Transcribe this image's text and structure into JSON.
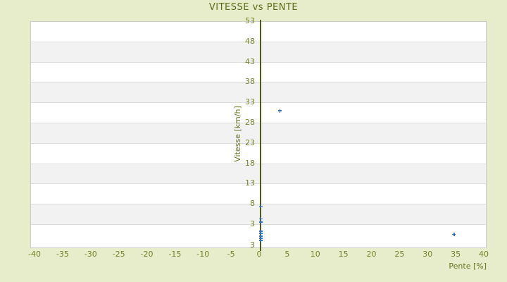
{
  "chart_data": {
    "type": "scatter",
    "title": "VITESSE vs PENTE",
    "xlabel": "Pente [%]",
    "ylabel": "Vitesse [km/h]",
    "x_ticks": [
      -40,
      -35,
      -30,
      -25,
      -20,
      -15,
      -10,
      -5,
      0,
      5,
      10,
      15,
      20,
      25,
      30,
      35,
      40
    ],
    "y_ticks": [
      53,
      48,
      43,
      38,
      33,
      28,
      23,
      18,
      13,
      8,
      3
    ],
    "y_axis_edge_label": "3",
    "xlim": [
      -40.75,
      40.5
    ],
    "ylim": [
      -2.9,
      53
    ],
    "grid": "horizontal-bands",
    "legend": "none",
    "points": [
      {
        "pente": 0.3,
        "vitesse": 7.4
      },
      {
        "pente": 0.3,
        "vitesse": 4.3
      },
      {
        "pente": 0.3,
        "vitesse": 3.5
      },
      {
        "pente": 0.3,
        "vitesse": 1.3
      },
      {
        "pente": 0.3,
        "vitesse": 0.7
      },
      {
        "pente": 0.3,
        "vitesse": 0.1
      },
      {
        "pente": 0.3,
        "vitesse": -0.5
      },
      {
        "pente": 0.3,
        "vitesse": -1.0
      },
      {
        "pente": 3.7,
        "vitesse": 30.9
      },
      {
        "pente": 34.7,
        "vitesse": 0.5
      }
    ],
    "colors": {
      "background": "#e7edcb",
      "title_text": "#5c6c1a",
      "tick_text": "#76802c",
      "band_alt": "#f2f2f2",
      "band_main": "#ffffff",
      "grid_line": "#dcdcdc",
      "plot_border": "#cccccc",
      "axis_line": "#4d5c12",
      "marker": "#3376c0"
    }
  }
}
